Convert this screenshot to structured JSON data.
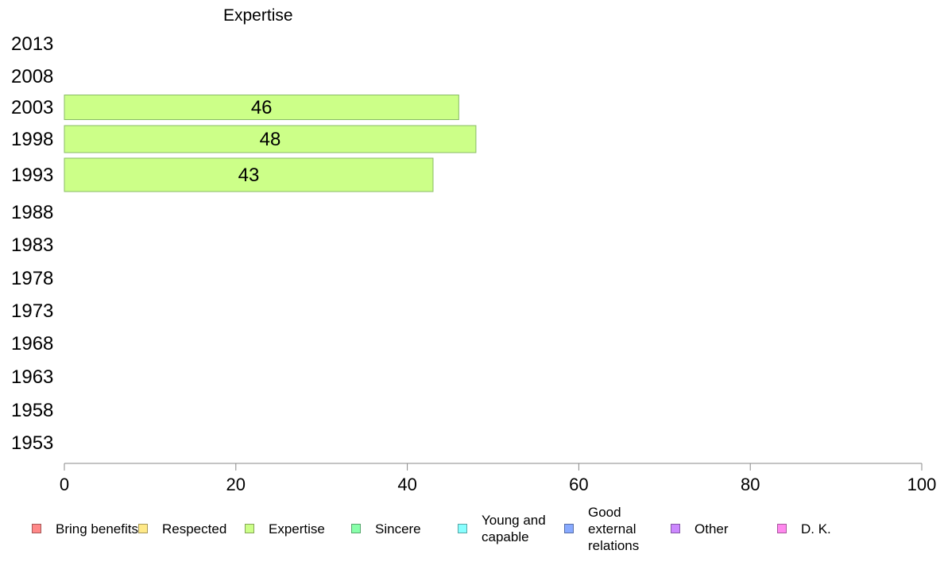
{
  "chart_data": {
    "type": "bar",
    "orientation": "horizontal",
    "title": "Expertise",
    "categories": [
      "2013",
      "2008",
      "2003",
      "1998",
      "1993",
      "1988",
      "1983",
      "1978",
      "1973",
      "1968",
      "1963",
      "1958",
      "1953"
    ],
    "series": [
      {
        "name": "Expertise",
        "color": "#ccff88",
        "values": [
          null,
          null,
          46,
          48,
          43,
          null,
          null,
          null,
          null,
          null,
          null,
          null,
          null
        ]
      }
    ],
    "xlim": [
      0,
      100
    ],
    "xticks": [
      "0",
      "20",
      "40",
      "60",
      "80",
      "100"
    ],
    "grid": false,
    "legend_position": "bottom"
  },
  "legend": [
    {
      "label": "Bring benefits",
      "color": "#ff8888"
    },
    {
      "label": "Respected",
      "color": "#ffe988"
    },
    {
      "label": "Expertise",
      "color": "#ccff88"
    },
    {
      "label": "Sincere",
      "color": "#88ffaa"
    },
    {
      "label": "Young and capable",
      "color": "#88ffff"
    },
    {
      "label": "Good external relations",
      "color": "#88aaff"
    },
    {
      "label": "Other",
      "color": "#cc88ff"
    },
    {
      "label": "D. K.",
      "color": "#ff88ee"
    }
  ]
}
